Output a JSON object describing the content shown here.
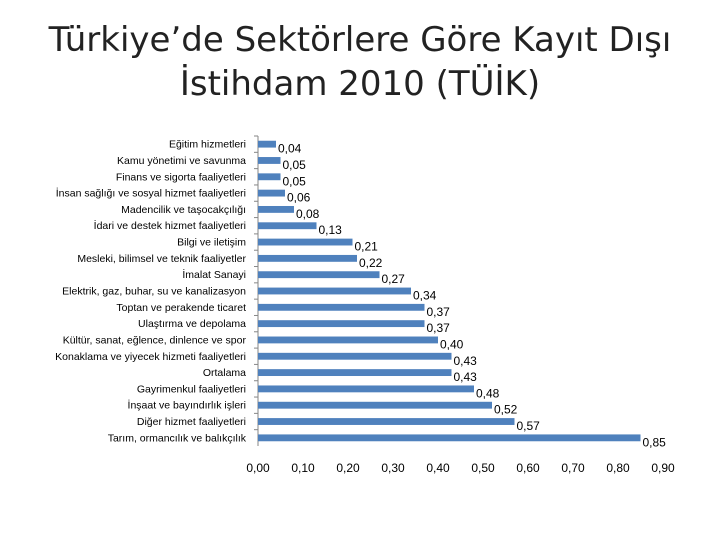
{
  "title_lines": [
    "Türkiye’de Sektörlere Göre Kayıt Dışı",
    "İstihdam 2010 (TÜİK)"
  ],
  "colors": {
    "bar": "#4f81bd",
    "axis": "#868686",
    "text": "#000000"
  },
  "chart_data": {
    "type": "bar",
    "orientation": "horizontal",
    "categories": [
      "Eğitim hizmetleri",
      "Kamu yönetimi ve savunma",
      "Finans ve sigorta faaliyetleri",
      "İnsan sağlığı ve sosyal hizmet faaliyetleri",
      "Madencilik ve taşocakçılığı",
      "İdari ve destek hizmet faaliyetleri",
      "Bilgi ve iletişim",
      "Mesleki, bilimsel ve teknik faaliyetler",
      "İmalat Sanayi",
      "Elektrik, gaz, buhar, su ve kanalizasyon",
      "Toptan ve perakende ticaret",
      "Ulaştırma ve depolama",
      "Kültür, sanat, eğlence, dinlence ve spor",
      "Konaklama ve yiyecek hizmeti faaliyetleri",
      "Ortalama",
      "Gayrimenkul faaliyetleri",
      "İnşaat ve bayındırlık işleri",
      "Diğer hizmet faaliyetleri",
      "Tarım, ormancılık ve balıkçılık"
    ],
    "values": [
      0.04,
      0.05,
      0.05,
      0.06,
      0.08,
      0.13,
      0.21,
      0.22,
      0.27,
      0.34,
      0.37,
      0.37,
      0.4,
      0.43,
      0.43,
      0.48,
      0.52,
      0.57,
      0.85
    ],
    "value_labels": [
      "0,04",
      "0,05",
      "0,05",
      "0,06",
      "0,08",
      "0,13",
      "0,21",
      "0,22",
      "0,27",
      "0,34",
      "0,37",
      "0,37",
      "0,40",
      "0,43",
      "0,43",
      "0,48",
      "0,52",
      "0,57",
      "0,85"
    ],
    "xlim": [
      0,
      0.9
    ],
    "ticks": [
      0,
      0.1,
      0.2,
      0.3,
      0.4,
      0.5,
      0.6,
      0.7,
      0.8,
      0.9
    ],
    "tick_labels": [
      "0,00",
      "0,10",
      "0,20",
      "0,30",
      "0,40",
      "0,50",
      "0,60",
      "0,70",
      "0,80",
      "0,90"
    ],
    "grid": false,
    "legend": "none"
  }
}
